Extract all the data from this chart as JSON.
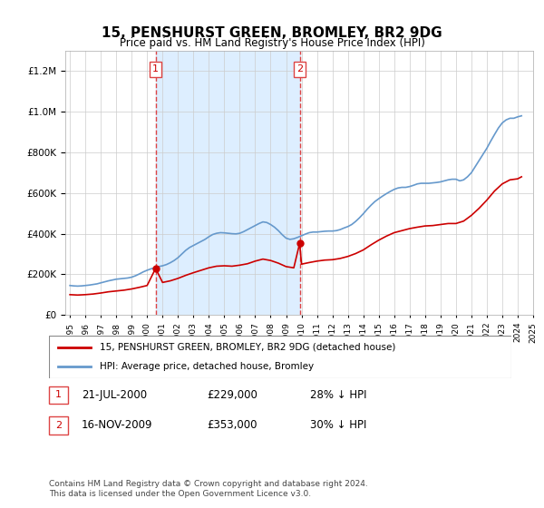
{
  "title": "15, PENSHURST GREEN, BROMLEY, BR2 9DG",
  "subtitle": "Price paid vs. HM Land Registry's House Price Index (HPI)",
  "legend_label_red": "15, PENSHURST GREEN, BROMLEY, BR2 9DG (detached house)",
  "legend_label_blue": "HPI: Average price, detached house, Bromley",
  "footnote": "Contains HM Land Registry data © Crown copyright and database right 2024.\nThis data is licensed under the Open Government Licence v3.0.",
  "table_rows": [
    {
      "num": "1",
      "date": "21-JUL-2000",
      "price": "£229,000",
      "note": "28% ↓ HPI"
    },
    {
      "num": "2",
      "date": "16-NOV-2009",
      "price": "£353,000",
      "note": "30% ↓ HPI"
    }
  ],
  "marker1_year": 2000.55,
  "marker1_price": 229000,
  "marker2_year": 2009.88,
  "marker2_price": 353000,
  "vline1_year": 2000.55,
  "vline2_year": 2009.88,
  "red_color": "#cc0000",
  "blue_color": "#6699cc",
  "vline_color": "#dd4444",
  "shade_color": "#ddeeff",
  "ylim": [
    0,
    1300000
  ],
  "yticks": [
    0,
    200000,
    400000,
    600000,
    800000,
    1000000,
    1200000
  ],
  "hpi_data": {
    "years": [
      1995.0,
      1995.25,
      1995.5,
      1995.75,
      1996.0,
      1996.25,
      1996.5,
      1996.75,
      1997.0,
      1997.25,
      1997.5,
      1997.75,
      1998.0,
      1998.25,
      1998.5,
      1998.75,
      1999.0,
      1999.25,
      1999.5,
      1999.75,
      2000.0,
      2000.25,
      2000.5,
      2000.75,
      2001.0,
      2001.25,
      2001.5,
      2001.75,
      2002.0,
      2002.25,
      2002.5,
      2002.75,
      2003.0,
      2003.25,
      2003.5,
      2003.75,
      2004.0,
      2004.25,
      2004.5,
      2004.75,
      2005.0,
      2005.25,
      2005.5,
      2005.75,
      2006.0,
      2006.25,
      2006.5,
      2006.75,
      2007.0,
      2007.25,
      2007.5,
      2007.75,
      2008.0,
      2008.25,
      2008.5,
      2008.75,
      2009.0,
      2009.25,
      2009.5,
      2009.75,
      2010.0,
      2010.25,
      2010.5,
      2010.75,
      2011.0,
      2011.25,
      2011.5,
      2011.75,
      2012.0,
      2012.25,
      2012.5,
      2012.75,
      2013.0,
      2013.25,
      2013.5,
      2013.75,
      2014.0,
      2014.25,
      2014.5,
      2014.75,
      2015.0,
      2015.25,
      2015.5,
      2015.75,
      2016.0,
      2016.25,
      2016.5,
      2016.75,
      2017.0,
      2017.25,
      2017.5,
      2017.75,
      2018.0,
      2018.25,
      2018.5,
      2018.75,
      2019.0,
      2019.25,
      2019.5,
      2019.75,
      2020.0,
      2020.25,
      2020.5,
      2020.75,
      2021.0,
      2021.25,
      2021.5,
      2021.75,
      2022.0,
      2022.25,
      2022.5,
      2022.75,
      2023.0,
      2023.25,
      2023.5,
      2023.75,
      2024.0,
      2024.25
    ],
    "values": [
      145000,
      143000,
      142000,
      143000,
      145000,
      147000,
      150000,
      153000,
      158000,
      163000,
      168000,
      172000,
      176000,
      178000,
      180000,
      182000,
      186000,
      193000,
      202000,
      212000,
      220000,
      227000,
      233000,
      238000,
      242000,
      248000,
      257000,
      268000,
      282000,
      300000,
      318000,
      332000,
      342000,
      352000,
      362000,
      372000,
      385000,
      396000,
      402000,
      405000,
      404000,
      402000,
      400000,
      399000,
      402000,
      410000,
      420000,
      430000,
      440000,
      450000,
      458000,
      455000,
      445000,
      432000,
      415000,
      395000,
      378000,
      372000,
      375000,
      382000,
      390000,
      398000,
      405000,
      408000,
      408000,
      410000,
      412000,
      413000,
      413000,
      415000,
      420000,
      428000,
      435000,
      445000,
      460000,
      478000,
      498000,
      520000,
      540000,
      558000,
      572000,
      585000,
      597000,
      608000,
      618000,
      625000,
      628000,
      628000,
      632000,
      638000,
      645000,
      648000,
      648000,
      648000,
      650000,
      652000,
      655000,
      660000,
      665000,
      668000,
      668000,
      660000,
      665000,
      680000,
      700000,
      730000,
      760000,
      790000,
      820000,
      855000,
      888000,
      920000,
      945000,
      960000,
      968000,
      968000,
      975000,
      980000
    ]
  },
  "red_data": {
    "years": [
      1995.0,
      1995.5,
      1996.0,
      1996.5,
      1997.0,
      1997.5,
      1998.0,
      1998.5,
      1999.0,
      1999.5,
      2000.0,
      2000.55,
      2001.0,
      2001.5,
      2002.0,
      2002.5,
      2003.0,
      2003.5,
      2004.0,
      2004.5,
      2005.0,
      2005.5,
      2006.0,
      2006.5,
      2007.0,
      2007.5,
      2008.0,
      2008.5,
      2009.0,
      2009.5,
      2009.88,
      2010.0,
      2010.5,
      2011.0,
      2011.5,
      2012.0,
      2012.5,
      2013.0,
      2013.5,
      2014.0,
      2014.5,
      2015.0,
      2015.5,
      2016.0,
      2016.5,
      2017.0,
      2017.5,
      2018.0,
      2018.5,
      2019.0,
      2019.5,
      2020.0,
      2020.5,
      2021.0,
      2021.5,
      2022.0,
      2022.5,
      2023.0,
      2023.5,
      2024.0,
      2024.25
    ],
    "values": [
      100000,
      98000,
      100000,
      103000,
      108000,
      114000,
      118000,
      122000,
      128000,
      136000,
      145000,
      229000,
      160000,
      168000,
      180000,
      195000,
      208000,
      220000,
      232000,
      240000,
      242000,
      240000,
      245000,
      252000,
      265000,
      275000,
      268000,
      255000,
      238000,
      232000,
      353000,
      250000,
      258000,
      265000,
      270000,
      272000,
      278000,
      288000,
      302000,
      320000,
      345000,
      368000,
      388000,
      405000,
      415000,
      425000,
      432000,
      438000,
      440000,
      445000,
      450000,
      450000,
      462000,
      490000,
      525000,
      565000,
      610000,
      645000,
      665000,
      670000,
      680000
    ]
  }
}
